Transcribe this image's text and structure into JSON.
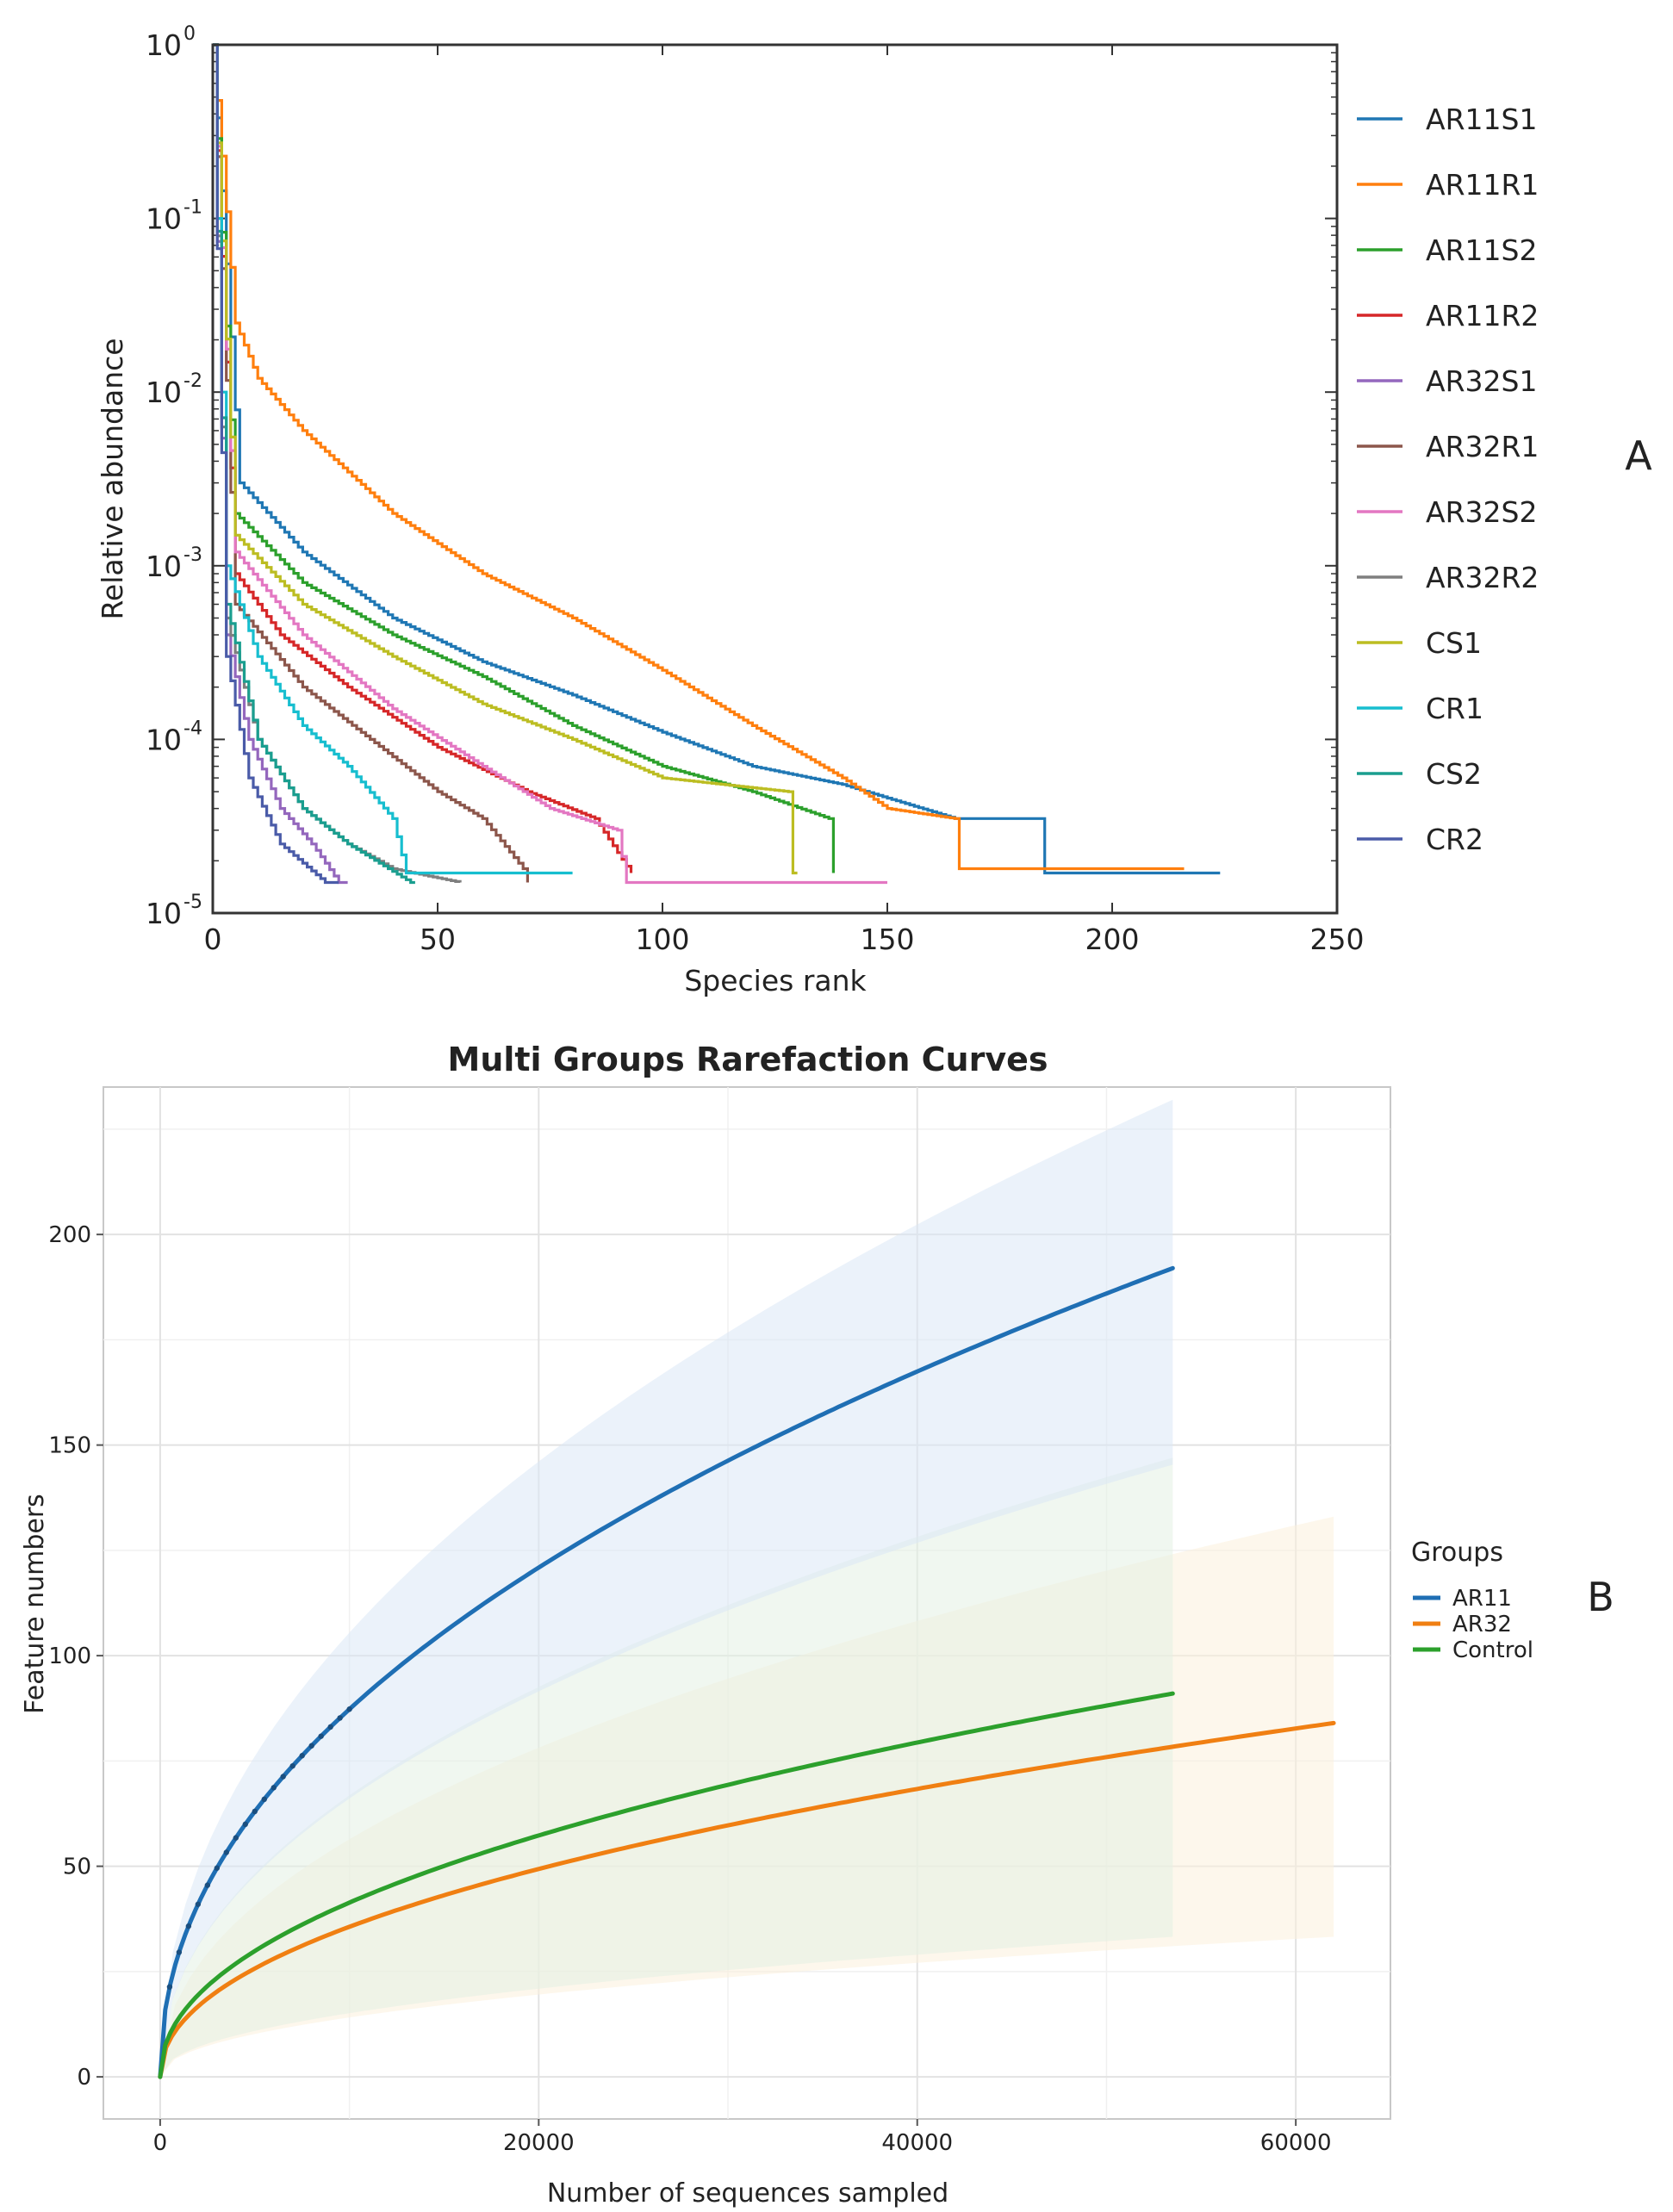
{
  "chart_data": [
    {
      "type": "line",
      "panel_label": "A",
      "title": "",
      "xlabel": "Species rank",
      "ylabel": "Relative abundance",
      "xlim": [
        0,
        250
      ],
      "ylim": [
        1e-05,
        1
      ],
      "yscale": "log",
      "xticks": [
        "0",
        "50",
        "100",
        "150",
        "200",
        "250"
      ],
      "yticks": [
        {
          "base": "10",
          "exp": "0"
        },
        {
          "base": "10",
          "exp": "-1"
        },
        {
          "base": "10",
          "exp": "-2"
        },
        {
          "base": "10",
          "exp": "-3"
        },
        {
          "base": "10",
          "exp": "-4"
        },
        {
          "base": "10",
          "exp": "-5"
        }
      ],
      "legend_position": "outside-right",
      "series": [
        {
          "name": "AR11S1",
          "color": "#1f77b4",
          "n": 224,
          "tail": [
            [
              6,
              0.003
            ],
            [
              20,
              0.0012
            ],
            [
              40,
              0.0005
            ],
            [
              60,
              0.00028
            ],
            [
              80,
              0.00018
            ],
            [
              100,
              0.00011
            ],
            [
              120,
              7e-05
            ],
            [
              140,
              5.5e-05
            ],
            [
              165,
              3.5e-05
            ],
            [
              184,
              3.5e-05
            ],
            [
              185,
              1.7e-05
            ],
            [
              224,
              1.7e-05
            ]
          ]
        },
        {
          "name": "AR11R1",
          "color": "#ff7f0e",
          "n": 216,
          "tail": [
            [
              5,
              0.025
            ],
            [
              10,
              0.012
            ],
            [
              20,
              0.006
            ],
            [
              40,
              0.002
            ],
            [
              60,
              0.0009
            ],
            [
              80,
              0.0005
            ],
            [
              100,
              0.00025
            ],
            [
              120,
              0.00012
            ],
            [
              140,
              6e-05
            ],
            [
              150,
              4e-05
            ],
            [
              165,
              3.5e-05
            ],
            [
              166,
              1.8e-05
            ],
            [
              216,
              1.8e-05
            ]
          ]
        },
        {
          "name": "AR11S2",
          "color": "#2ca02c",
          "n": 138,
          "tail": [
            [
              5,
              0.002
            ],
            [
              20,
              0.0008
            ],
            [
              40,
              0.0004
            ],
            [
              60,
              0.00023
            ],
            [
              80,
              0.00012
            ],
            [
              100,
              7e-05
            ],
            [
              120,
              5e-05
            ],
            [
              137,
              3.5e-05
            ],
            [
              138,
              1.7e-05
            ]
          ]
        },
        {
          "name": "AR11R2",
          "color": "#d62728",
          "n": 93,
          "tail": [
            [
              5,
              0.0009
            ],
            [
              15,
              0.0004
            ],
            [
              30,
              0.0002
            ],
            [
              50,
              9e-05
            ],
            [
              70,
              5e-05
            ],
            [
              85,
              3.5e-05
            ],
            [
              93,
              1.7e-05
            ]
          ]
        },
        {
          "name": "AR32S1",
          "color": "#9467bd",
          "n": 30,
          "tail": [
            [
              3,
              0.0004
            ],
            [
              8,
              0.0001
            ],
            [
              15,
              4e-05
            ],
            [
              22,
              2.5e-05
            ],
            [
              28,
              1.5e-05
            ],
            [
              30,
              1.5e-05
            ]
          ]
        },
        {
          "name": "AR32R1",
          "color": "#8c564b",
          "n": 70,
          "tail": [
            [
              5,
              0.0006
            ],
            [
              20,
              0.0002
            ],
            [
              35,
              0.0001
            ],
            [
              50,
              5e-05
            ],
            [
              60,
              3.5e-05
            ],
            [
              69,
              1.8e-05
            ],
            [
              70,
              1.5e-05
            ]
          ]
        },
        {
          "name": "AR32S2",
          "color": "#e377c2",
          "n": 150,
          "tail": [
            [
              5,
              0.0012
            ],
            [
              20,
              0.0004
            ],
            [
              40,
              0.00015
            ],
            [
              60,
              7e-05
            ],
            [
              75,
              4e-05
            ],
            [
              90,
              3e-05
            ],
            [
              92,
              1.5e-05
            ],
            [
              150,
              1.5e-05
            ]
          ]
        },
        {
          "name": "AR32R2",
          "color": "#7f7f7f",
          "n": 55,
          "tail": [
            [
              3,
              0.0005
            ],
            [
              10,
              0.0001
            ],
            [
              20,
              4e-05
            ],
            [
              30,
              2.5e-05
            ],
            [
              40,
              1.8e-05
            ],
            [
              55,
              1.5e-05
            ]
          ]
        },
        {
          "name": "CS1",
          "color": "#bcbd22",
          "n": 130,
          "tail": [
            [
              5,
              0.0015
            ],
            [
              20,
              0.0006
            ],
            [
              40,
              0.0003
            ],
            [
              60,
              0.00016
            ],
            [
              80,
              0.0001
            ],
            [
              100,
              6e-05
            ],
            [
              128,
              5e-05
            ],
            [
              129,
              1.7e-05
            ],
            [
              130,
              1.7e-05
            ]
          ]
        },
        {
          "name": "CR1",
          "color": "#17becf",
          "n": 80,
          "tail": [
            [
              3,
              0.001
            ],
            [
              10,
              0.0003
            ],
            [
              20,
              0.00012
            ],
            [
              30,
              7e-05
            ],
            [
              40,
              3.5e-05
            ],
            [
              43,
              1.7e-05
            ],
            [
              80,
              1.7e-05
            ]
          ]
        },
        {
          "name": "CS2",
          "color": "#1a9e8f",
          "n": 45,
          "tail": [
            [
              3,
              0.0006
            ],
            [
              10,
              0.0001
            ],
            [
              20,
              4e-05
            ],
            [
              30,
              2.5e-05
            ],
            [
              44,
              1.5e-05
            ],
            [
              45,
              1.5e-05
            ]
          ]
        },
        {
          "name": "CR2",
          "color": "#4a5ba8",
          "n": 28,
          "tail": [
            [
              3,
              0.0003
            ],
            [
              8,
              6e-05
            ],
            [
              15,
              2.5e-05
            ],
            [
              25,
              1.5e-05
            ],
            [
              28,
              1.5e-05
            ]
          ]
        }
      ]
    },
    {
      "type": "line",
      "panel_label": "B",
      "title": "Multi Groups Rarefaction Curves",
      "xlabel": "Number of sequences sampled",
      "ylabel": "Feature numbers",
      "xlim": [
        -3000,
        65000
      ],
      "ylim": [
        -10,
        235
      ],
      "xticks": [
        0,
        20000,
        40000,
        60000
      ],
      "yticks": [
        0,
        50,
        100,
        150,
        200
      ],
      "grid": true,
      "legend_title": "Groups",
      "legend_position": "outside-right",
      "series": [
        {
          "name": "AR11",
          "color": "#1f6fb4",
          "band_color": "#dbe8f5",
          "x_max": 53500,
          "end_value": 192,
          "lower_end": 153,
          "upper_end": 232
        },
        {
          "name": "AR32",
          "color": "#f07f12",
          "band_color": "#fbf0dc",
          "x_max": 62000,
          "end_value": 84,
          "lower_end": 35,
          "upper_end": 133
        },
        {
          "name": "Control",
          "color": "#2ca02c",
          "band_color": "#e3f0e3",
          "x_max": 53500,
          "end_value": 91,
          "lower_end": 35,
          "upper_end": 147
        }
      ]
    }
  ]
}
